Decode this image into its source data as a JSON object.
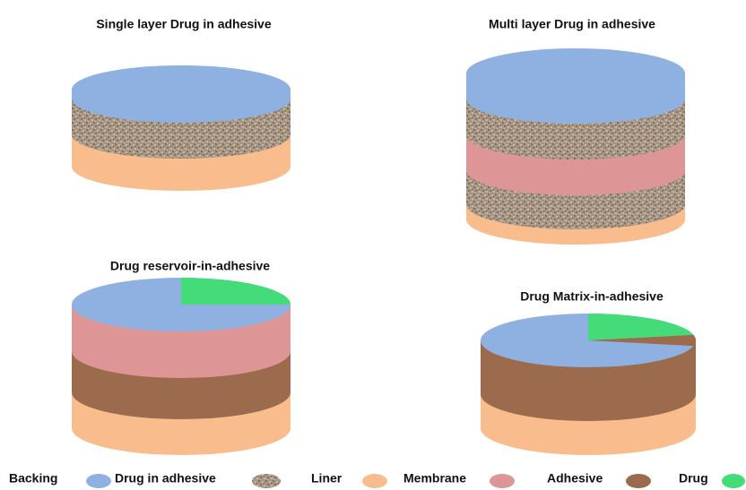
{
  "panels": [
    {
      "title": "Single layer Drug in adhesive"
    },
    {
      "title": "Multi layer Drug in adhesive"
    },
    {
      "title": "Drug reservoir-in-adhesive"
    },
    {
      "title": "Drug Matrix-in-adhesive"
    }
  ],
  "legend": [
    {
      "label": "Backing"
    },
    {
      "label": "Drug in adhesive"
    },
    {
      "label": "Liner"
    },
    {
      "label": "Membrane"
    },
    {
      "label": "Adhesive"
    },
    {
      "label": "Drug"
    }
  ]
}
